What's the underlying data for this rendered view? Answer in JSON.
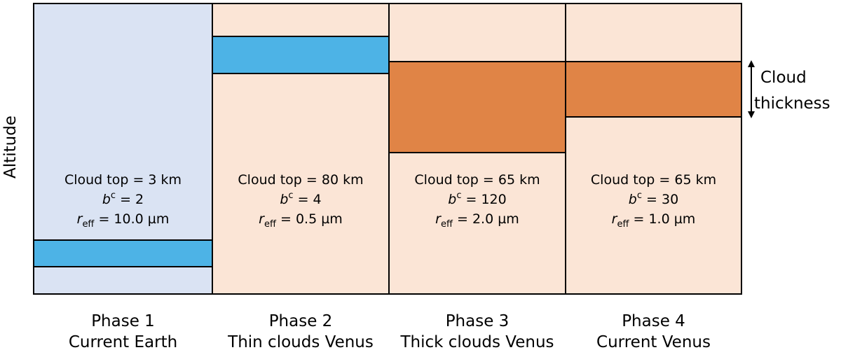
{
  "axis_label": "Altitude",
  "legend": {
    "line1": "Cloud",
    "line2": "thickness"
  },
  "panels": [
    {
      "phase": "Phase 1",
      "name": "Current Earth",
      "cloud_top": "Cloud top = 3 km",
      "b_symbol": "b",
      "b_sup": "c",
      "b_value": " = 2",
      "r_symbol": "r",
      "r_sub": "eff",
      "r_value": " = 10.0 µm"
    },
    {
      "phase": "Phase 2",
      "name": "Thin clouds Venus",
      "cloud_top": "Cloud top = 80 km",
      "b_symbol": "b",
      "b_sup": "c",
      "b_value": " = 4",
      "r_symbol": "r",
      "r_sub": "eff",
      "r_value": " = 0.5 µm"
    },
    {
      "phase": "Phase 3",
      "name": "Thick clouds Venus",
      "cloud_top": "Cloud top = 65 km",
      "b_symbol": "b",
      "b_sup": "c",
      "b_value": " = 120",
      "r_symbol": "r",
      "r_sub": "eff",
      "r_value": " = 2.0 µm"
    },
    {
      "phase": "Phase 4",
      "name": "Current Venus",
      "cloud_top": "Cloud top = 65 km",
      "b_symbol": "b",
      "b_sup": "c",
      "b_value": " = 30",
      "r_symbol": "r",
      "r_sub": "eff",
      "r_value": " = 1.0 µm"
    }
  ]
}
